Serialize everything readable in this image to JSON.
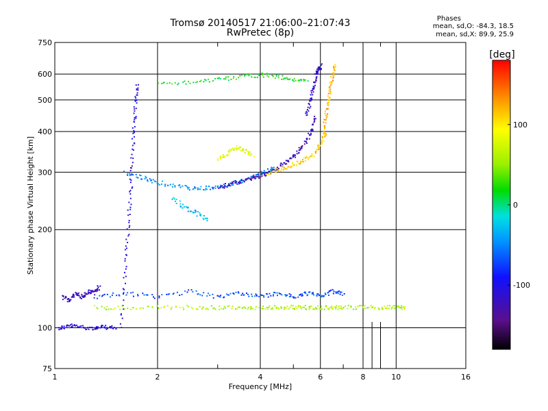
{
  "header": {
    "title_line1": "Tromsø 20140517 21:06:00–21:07:43",
    "title_line2": "RwPretec (8p)",
    "phases_label": "Phases",
    "stat_o": "mean, sd,O: -84.3, 18.5",
    "stat_x": "mean, sd,X:  89.9, 25.9"
  },
  "colorbar": {
    "label": "[deg]",
    "ticks": [
      100,
      0,
      -100
    ],
    "range": [
      -180,
      180
    ]
  },
  "chart_data": {
    "type": "scatter",
    "xlabel": "Frequency [MHz]",
    "ylabel": "Stationary phase Virtual Height [km]",
    "xscale": "log",
    "yscale": "log",
    "xlim": [
      1,
      16
    ],
    "ylim": [
      75,
      750
    ],
    "xticks": [
      1,
      2,
      4,
      6,
      8,
      10,
      16
    ],
    "xminor": [
      3,
      5,
      7,
      9
    ],
    "yticks": [
      75,
      100,
      200,
      300,
      400,
      500,
      600,
      750
    ],
    "grid": true,
    "color_encoding": "phase [deg]",
    "traces": [
      {
        "x": [
          1.02,
          1.1,
          1.2,
          1.3,
          1.4,
          1.5
        ],
        "y": [
          100,
          102,
          101,
          100,
          101,
          100
        ],
        "phase": -110
      },
      {
        "x": [
          1.55,
          1.6,
          1.63,
          1.66,
          1.68,
          1.7,
          1.72,
          1.74
        ],
        "y": [
          100,
          150,
          200,
          260,
          330,
          420,
          500,
          560
        ],
        "phase": -105
      },
      {
        "x": [
          1.6,
          1.8,
          2.0,
          2.3,
          2.6,
          2.9,
          3.2,
          3.5,
          3.8,
          4.1,
          4.4
        ],
        "y": [
          300,
          290,
          280,
          272,
          268,
          270,
          275,
          282,
          292,
          302,
          312
        ],
        "phase": -50
      },
      {
        "x": [
          3.0,
          3.3,
          3.6,
          3.9,
          4.2,
          4.5,
          4.8,
          5.1,
          5.4,
          5.6,
          5.8
        ],
        "y": [
          270,
          278,
          285,
          292,
          300,
          312,
          325,
          345,
          370,
          400,
          450
        ],
        "phase": -125
      },
      {
        "x": [
          4.2,
          4.6,
          5.0,
          5.4,
          5.8,
          6.0,
          6.2
        ],
        "y": [
          300,
          308,
          318,
          330,
          345,
          370,
          400
        ],
        "phase": 110
      },
      {
        "x": [
          5.4,
          5.6,
          5.7,
          5.8,
          5.9,
          6.0
        ],
        "y": [
          450,
          500,
          550,
          600,
          620,
          640
        ],
        "phase": -115
      },
      {
        "x": [
          6.1,
          6.2,
          6.3,
          6.4,
          6.5,
          6.6
        ],
        "y": [
          400,
          450,
          500,
          550,
          600,
          640
        ],
        "phase": 120
      },
      {
        "x": [
          3.0,
          3.2,
          3.4,
          3.6,
          3.8
        ],
        "y": [
          330,
          345,
          360,
          350,
          340
        ],
        "phase": 80
      },
      {
        "x": [
          2.2,
          2.4,
          2.6,
          2.8
        ],
        "y": [
          250,
          235,
          225,
          215
        ],
        "phase": -30
      },
      {
        "x": [
          1.3,
          1.6,
          2.0,
          2.5,
          3.0,
          3.5,
          4.0,
          4.5,
          5.0,
          5.5,
          6.0,
          6.5,
          7.0,
          8.0,
          9.0,
          10.0,
          10.6
        ],
        "y": [
          116,
          116,
          116,
          116,
          116,
          116,
          116,
          116,
          116,
          116,
          116,
          116,
          116,
          116,
          116,
          116,
          116
        ],
        "phase": 60
      },
      {
        "x": [
          1.3,
          1.6,
          2.0,
          2.5,
          3.0,
          3.5,
          4.0,
          4.5,
          5.0,
          5.5,
          6.0,
          6.5,
          7.0
        ],
        "y": [
          125,
          128,
          125,
          130,
          125,
          128,
          126,
          128,
          125,
          128,
          126,
          130,
          128
        ],
        "phase": -70
      },
      {
        "x": [
          1.05,
          1.1,
          1.15,
          1.2,
          1.25,
          1.3,
          1.35
        ],
        "y": [
          125,
          122,
          128,
          125,
          130,
          128,
          135
        ],
        "phase": -120
      },
      {
        "x": [
          2.0,
          2.5,
          3.0,
          3.5,
          4.0,
          4.5,
          5.0,
          5.5
        ],
        "y": [
          560,
          570,
          580,
          590,
          600,
          590,
          580,
          570
        ],
        "phase": 20
      }
    ]
  }
}
